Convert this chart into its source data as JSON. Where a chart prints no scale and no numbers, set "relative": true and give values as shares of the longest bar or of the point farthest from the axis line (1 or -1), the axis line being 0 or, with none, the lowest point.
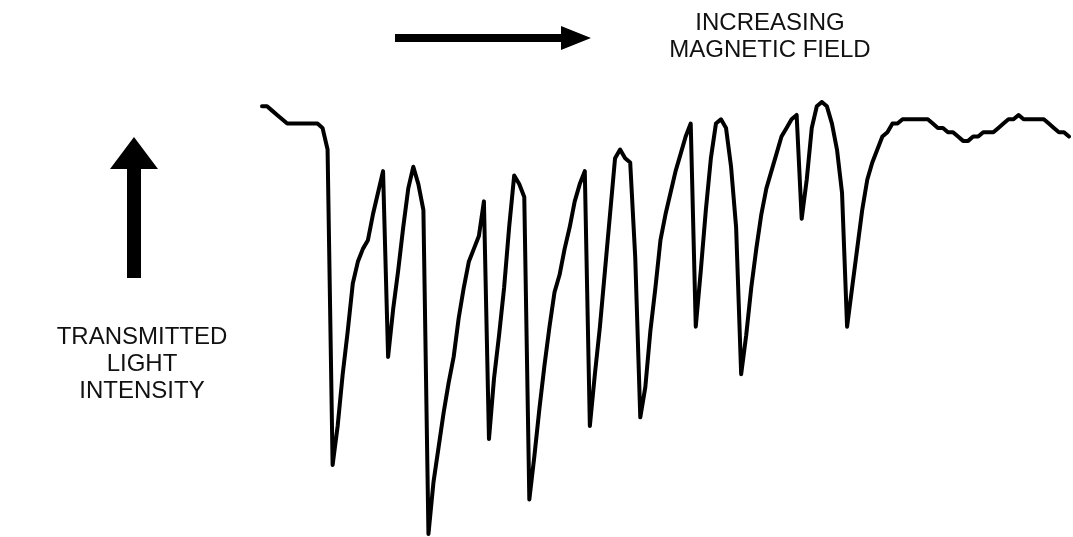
{
  "chart_data": {
    "type": "line",
    "relative": true,
    "xlabel": "INCREASING MAGNETIC FIELD",
    "ylabel": "TRANSMITTED LIGHT INTENSITY",
    "marker": "none",
    "color": "#000000",
    "categories": [
      null,
      null,
      null,
      null,
      null,
      null,
      null,
      null,
      null,
      null,
      null,
      null,
      null,
      null,
      null,
      null,
      null,
      null,
      null,
      null,
      null,
      null,
      null,
      null,
      null,
      null,
      null,
      null,
      null,
      null,
      null,
      null,
      null,
      null,
      null,
      null,
      null,
      null,
      null,
      null,
      null,
      null,
      null,
      null,
      null,
      null,
      null,
      null,
      null,
      null,
      null,
      null,
      null,
      null,
      null,
      null,
      null,
      null,
      null,
      null,
      null,
      null,
      null,
      null,
      null,
      null,
      null,
      null,
      null,
      null,
      null,
      null,
      null,
      null,
      null,
      null,
      null,
      null,
      null,
      null,
      null,
      null,
      null,
      null,
      null,
      null,
      null,
      null,
      null,
      null,
      null,
      null,
      null,
      null,
      null,
      null,
      null,
      null,
      null,
      null,
      null,
      null,
      null,
      null,
      null,
      null,
      null,
      null,
      null,
      null,
      null,
      null,
      null,
      null,
      null,
      null,
      null,
      null,
      null,
      null,
      null,
      null,
      null,
      null,
      null,
      null,
      null,
      null,
      null,
      null,
      null,
      null,
      null,
      null,
      null,
      null,
      null,
      null,
      null,
      null,
      null,
      null,
      null,
      null,
      null,
      null,
      null,
      null,
      null,
      null,
      null,
      null,
      null,
      null,
      null,
      null,
      null,
      null,
      null,
      null,
      null
    ],
    "values": [
      0.99,
      0.99,
      0.98,
      0.97,
      0.96,
      0.95,
      0.95,
      0.95,
      0.95,
      0.95,
      0.95,
      0.95,
      0.94,
      0.89,
      0.16,
      0.25,
      0.37,
      0.47,
      0.58,
      0.63,
      0.66,
      0.68,
      0.74,
      0.79,
      0.84,
      0.41,
      0.52,
      0.61,
      0.71,
      0.8,
      0.85,
      0.81,
      0.75,
      0.0,
      0.12,
      0.2,
      0.28,
      0.35,
      0.41,
      0.5,
      0.57,
      0.63,
      0.66,
      0.69,
      0.77,
      0.22,
      0.36,
      0.46,
      0.57,
      0.71,
      0.83,
      0.81,
      0.78,
      0.08,
      0.18,
      0.29,
      0.39,
      0.48,
      0.56,
      0.6,
      0.66,
      0.71,
      0.77,
      0.81,
      0.84,
      0.25,
      0.37,
      0.48,
      0.61,
      0.74,
      0.87,
      0.89,
      0.87,
      0.86,
      0.64,
      0.27,
      0.34,
      0.47,
      0.57,
      0.68,
      0.74,
      0.79,
      0.84,
      0.88,
      0.92,
      0.95,
      0.48,
      0.61,
      0.75,
      0.87,
      0.95,
      0.96,
      0.94,
      0.85,
      0.71,
      0.37,
      0.46,
      0.57,
      0.66,
      0.74,
      0.8,
      0.84,
      0.88,
      0.92,
      0.94,
      0.96,
      0.97,
      0.73,
      0.82,
      0.94,
      0.99,
      1.0,
      0.99,
      0.95,
      0.89,
      0.79,
      0.48,
      0.57,
      0.66,
      0.75,
      0.82,
      0.86,
      0.89,
      0.92,
      0.93,
      0.95,
      0.95,
      0.96,
      0.96,
      0.96,
      0.96,
      0.96,
      0.96,
      0.95,
      0.94,
      0.94,
      0.93,
      0.93,
      0.92,
      0.91,
      0.91,
      0.92,
      0.92,
      0.93,
      0.93,
      0.93,
      0.94,
      0.95,
      0.96,
      0.96,
      0.97,
      0.96,
      0.96,
      0.96,
      0.96,
      0.96,
      0.95,
      0.94,
      0.93,
      0.93,
      0.92
    ]
  }
}
